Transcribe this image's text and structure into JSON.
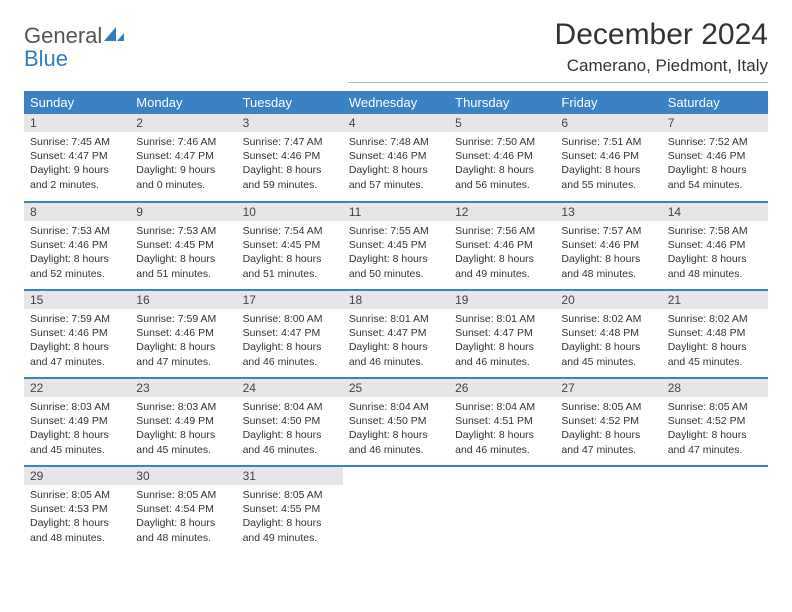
{
  "logo": {
    "word1": "General",
    "word2": "Blue"
  },
  "title": "December 2024",
  "location": "Camerano, Piedmont, Italy",
  "colors": {
    "header_bg": "#3b82c4",
    "header_text": "#ffffff",
    "daynum_bg": "#e6e6e6",
    "rule": "#3b82c4",
    "logo_gray": "#555555",
    "logo_blue": "#2f7cc0"
  },
  "weekdays": [
    "Sunday",
    "Monday",
    "Tuesday",
    "Wednesday",
    "Thursday",
    "Friday",
    "Saturday"
  ],
  "weeks": [
    [
      {
        "n": "1",
        "sunrise": "7:45 AM",
        "sunset": "4:47 PM",
        "daylight": "9 hours and 2 minutes."
      },
      {
        "n": "2",
        "sunrise": "7:46 AM",
        "sunset": "4:47 PM",
        "daylight": "9 hours and 0 minutes."
      },
      {
        "n": "3",
        "sunrise": "7:47 AM",
        "sunset": "4:46 PM",
        "daylight": "8 hours and 59 minutes."
      },
      {
        "n": "4",
        "sunrise": "7:48 AM",
        "sunset": "4:46 PM",
        "daylight": "8 hours and 57 minutes."
      },
      {
        "n": "5",
        "sunrise": "7:50 AM",
        "sunset": "4:46 PM",
        "daylight": "8 hours and 56 minutes."
      },
      {
        "n": "6",
        "sunrise": "7:51 AM",
        "sunset": "4:46 PM",
        "daylight": "8 hours and 55 minutes."
      },
      {
        "n": "7",
        "sunrise": "7:52 AM",
        "sunset": "4:46 PM",
        "daylight": "8 hours and 54 minutes."
      }
    ],
    [
      {
        "n": "8",
        "sunrise": "7:53 AM",
        "sunset": "4:46 PM",
        "daylight": "8 hours and 52 minutes."
      },
      {
        "n": "9",
        "sunrise": "7:53 AM",
        "sunset": "4:45 PM",
        "daylight": "8 hours and 51 minutes."
      },
      {
        "n": "10",
        "sunrise": "7:54 AM",
        "sunset": "4:45 PM",
        "daylight": "8 hours and 51 minutes."
      },
      {
        "n": "11",
        "sunrise": "7:55 AM",
        "sunset": "4:45 PM",
        "daylight": "8 hours and 50 minutes."
      },
      {
        "n": "12",
        "sunrise": "7:56 AM",
        "sunset": "4:46 PM",
        "daylight": "8 hours and 49 minutes."
      },
      {
        "n": "13",
        "sunrise": "7:57 AM",
        "sunset": "4:46 PM",
        "daylight": "8 hours and 48 minutes."
      },
      {
        "n": "14",
        "sunrise": "7:58 AM",
        "sunset": "4:46 PM",
        "daylight": "8 hours and 48 minutes."
      }
    ],
    [
      {
        "n": "15",
        "sunrise": "7:59 AM",
        "sunset": "4:46 PM",
        "daylight": "8 hours and 47 minutes."
      },
      {
        "n": "16",
        "sunrise": "7:59 AM",
        "sunset": "4:46 PM",
        "daylight": "8 hours and 47 minutes."
      },
      {
        "n": "17",
        "sunrise": "8:00 AM",
        "sunset": "4:47 PM",
        "daylight": "8 hours and 46 minutes."
      },
      {
        "n": "18",
        "sunrise": "8:01 AM",
        "sunset": "4:47 PM",
        "daylight": "8 hours and 46 minutes."
      },
      {
        "n": "19",
        "sunrise": "8:01 AM",
        "sunset": "4:47 PM",
        "daylight": "8 hours and 46 minutes."
      },
      {
        "n": "20",
        "sunrise": "8:02 AM",
        "sunset": "4:48 PM",
        "daylight": "8 hours and 45 minutes."
      },
      {
        "n": "21",
        "sunrise": "8:02 AM",
        "sunset": "4:48 PM",
        "daylight": "8 hours and 45 minutes."
      }
    ],
    [
      {
        "n": "22",
        "sunrise": "8:03 AM",
        "sunset": "4:49 PM",
        "daylight": "8 hours and 45 minutes."
      },
      {
        "n": "23",
        "sunrise": "8:03 AM",
        "sunset": "4:49 PM",
        "daylight": "8 hours and 45 minutes."
      },
      {
        "n": "24",
        "sunrise": "8:04 AM",
        "sunset": "4:50 PM",
        "daylight": "8 hours and 46 minutes."
      },
      {
        "n": "25",
        "sunrise": "8:04 AM",
        "sunset": "4:50 PM",
        "daylight": "8 hours and 46 minutes."
      },
      {
        "n": "26",
        "sunrise": "8:04 AM",
        "sunset": "4:51 PM",
        "daylight": "8 hours and 46 minutes."
      },
      {
        "n": "27",
        "sunrise": "8:05 AM",
        "sunset": "4:52 PM",
        "daylight": "8 hours and 47 minutes."
      },
      {
        "n": "28",
        "sunrise": "8:05 AM",
        "sunset": "4:52 PM",
        "daylight": "8 hours and 47 minutes."
      }
    ],
    [
      {
        "n": "29",
        "sunrise": "8:05 AM",
        "sunset": "4:53 PM",
        "daylight": "8 hours and 48 minutes."
      },
      {
        "n": "30",
        "sunrise": "8:05 AM",
        "sunset": "4:54 PM",
        "daylight": "8 hours and 48 minutes."
      },
      {
        "n": "31",
        "sunrise": "8:05 AM",
        "sunset": "4:55 PM",
        "daylight": "8 hours and 49 minutes."
      },
      {
        "empty": true
      },
      {
        "empty": true
      },
      {
        "empty": true
      },
      {
        "empty": true
      }
    ]
  ],
  "labels": {
    "sunrise": "Sunrise: ",
    "sunset": "Sunset: ",
    "daylight": "Daylight: "
  }
}
